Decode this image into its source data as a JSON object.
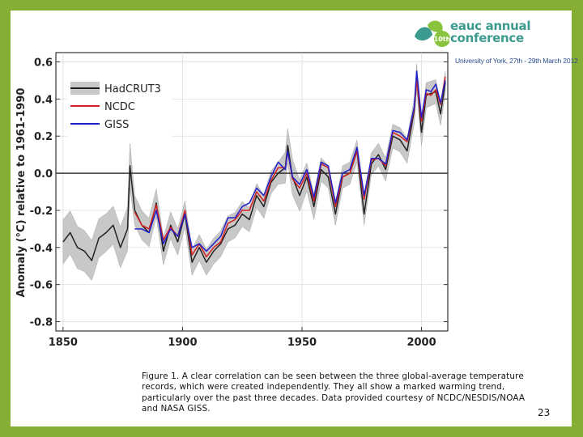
{
  "logo": {
    "badge": "10th",
    "line1": "eauc annual",
    "line2": "conference",
    "subtitle": "University of York, 27th - 29th March 2012"
  },
  "caption": "Figure 1. A clear correlation can be seen between the three global-average temperature records, which were created independently. They all show a marked warming trend, particularly over the past three decades. Data provided courtesy of NCDC/NESDIS/NOAA and NASA GISS.",
  "page_number": "23",
  "chart_data": {
    "type": "line",
    "title": "",
    "xlabel": "",
    "ylabel": "Anomaly (°C) relative to 1961-1990",
    "xlim": [
      1847,
      2011
    ],
    "ylim": [
      -0.85,
      0.65
    ],
    "x_ticks": [
      "1850",
      "1900",
      "1950",
      "2000"
    ],
    "y_ticks": [
      "0.6",
      "0.4",
      "0.2",
      "0.0",
      "-0.2",
      "-0.4",
      "-0.6",
      "-0.8"
    ],
    "legend": [
      "HadCRUT3",
      "NCDC",
      "GISS"
    ],
    "legend_position": "top-left",
    "colors": {
      "HadCRUT3": "#222222",
      "NCDC": "#d42020",
      "GISS": "#2020c8",
      "uncertainty": "#c8c8c8"
    },
    "series": [
      {
        "name": "HadCRUT3",
        "x": [
          1850,
          1853,
          1856,
          1859,
          1862,
          1865,
          1868,
          1871,
          1874,
          1877,
          1878,
          1880,
          1883,
          1886,
          1889,
          1892,
          1895,
          1898,
          1901,
          1904,
          1907,
          1910,
          1913,
          1916,
          1919,
          1922,
          1925,
          1928,
          1931,
          1934,
          1937,
          1940,
          1943,
          1944,
          1946,
          1949,
          1952,
          1955,
          1958,
          1961,
          1964,
          1967,
          1970,
          1973,
          1976,
          1979,
          1982,
          1985,
          1988,
          1991,
          1994,
          1997,
          1998,
          2000,
          2002,
          2004,
          2006,
          2008,
          2010
        ],
        "values": [
          -0.37,
          -0.32,
          -0.4,
          -0.42,
          -0.47,
          -0.35,
          -0.32,
          -0.28,
          -0.4,
          -0.3,
          0.04,
          -0.2,
          -0.28,
          -0.32,
          -0.16,
          -0.42,
          -0.28,
          -0.37,
          -0.22,
          -0.48,
          -0.4,
          -0.48,
          -0.42,
          -0.38,
          -0.3,
          -0.28,
          -0.22,
          -0.25,
          -0.12,
          -0.18,
          -0.05,
          0.0,
          0.03,
          0.15,
          -0.02,
          -0.12,
          -0.02,
          -0.18,
          0.02,
          -0.02,
          -0.22,
          -0.02,
          0.0,
          0.12,
          -0.22,
          0.05,
          0.1,
          0.02,
          0.2,
          0.18,
          0.12,
          0.34,
          0.52,
          0.22,
          0.42,
          0.43,
          0.44,
          0.32,
          0.49
        ]
      },
      {
        "name": "NCDC",
        "x": [
          1880,
          1883,
          1886,
          1889,
          1892,
          1895,
          1898,
          1901,
          1904,
          1907,
          1910,
          1913,
          1916,
          1919,
          1922,
          1925,
          1928,
          1931,
          1934,
          1937,
          1940,
          1943,
          1944,
          1946,
          1949,
          1952,
          1955,
          1958,
          1961,
          1964,
          1967,
          1970,
          1973,
          1976,
          1979,
          1982,
          1985,
          1988,
          1991,
          1994,
          1997,
          1998,
          2000,
          2002,
          2004,
          2006,
          2008,
          2010
        ],
        "values": [
          -0.21,
          -0.28,
          -0.3,
          -0.17,
          -0.36,
          -0.29,
          -0.34,
          -0.2,
          -0.44,
          -0.38,
          -0.45,
          -0.4,
          -0.37,
          -0.27,
          -0.25,
          -0.2,
          -0.2,
          -0.1,
          -0.15,
          -0.04,
          0.03,
          0.03,
          0.12,
          -0.03,
          -0.08,
          0.0,
          -0.15,
          0.05,
          0.03,
          -0.18,
          -0.02,
          0.0,
          0.12,
          -0.14,
          0.07,
          0.08,
          0.04,
          0.22,
          0.2,
          0.17,
          0.35,
          0.5,
          0.28,
          0.43,
          0.42,
          0.45,
          0.37,
          0.52
        ]
      },
      {
        "name": "GISS",
        "x": [
          1880,
          1883,
          1886,
          1889,
          1892,
          1895,
          1898,
          1901,
          1904,
          1907,
          1910,
          1913,
          1916,
          1919,
          1922,
          1925,
          1928,
          1931,
          1934,
          1937,
          1940,
          1943,
          1944,
          1946,
          1949,
          1952,
          1955,
          1958,
          1961,
          1964,
          1967,
          1970,
          1973,
          1976,
          1979,
          1982,
          1985,
          1988,
          1991,
          1994,
          1997,
          1998,
          2000,
          2002,
          2004,
          2006,
          2008,
          2010
        ],
        "values": [
          -0.3,
          -0.3,
          -0.32,
          -0.2,
          -0.38,
          -0.3,
          -0.34,
          -0.22,
          -0.4,
          -0.38,
          -0.42,
          -0.38,
          -0.34,
          -0.24,
          -0.24,
          -0.18,
          -0.16,
          -0.08,
          -0.12,
          -0.02,
          0.06,
          0.02,
          0.12,
          -0.02,
          -0.06,
          0.02,
          -0.13,
          0.06,
          0.04,
          -0.16,
          0.0,
          0.02,
          0.14,
          -0.12,
          0.08,
          0.08,
          0.05,
          0.23,
          0.22,
          0.18,
          0.36,
          0.55,
          0.3,
          0.45,
          0.44,
          0.48,
          0.38,
          0.5
        ]
      }
    ],
    "uncertainty_halfwidth": {
      "x": [
        1850,
        1870,
        1878,
        1880,
        1900,
        1920,
        1940,
        1945,
        1950,
        1960,
        1980,
        2000,
        2010
      ],
      "values": [
        0.12,
        0.1,
        0.12,
        0.08,
        0.07,
        0.07,
        0.06,
        0.1,
        0.08,
        0.06,
        0.06,
        0.07,
        0.06
      ]
    }
  }
}
